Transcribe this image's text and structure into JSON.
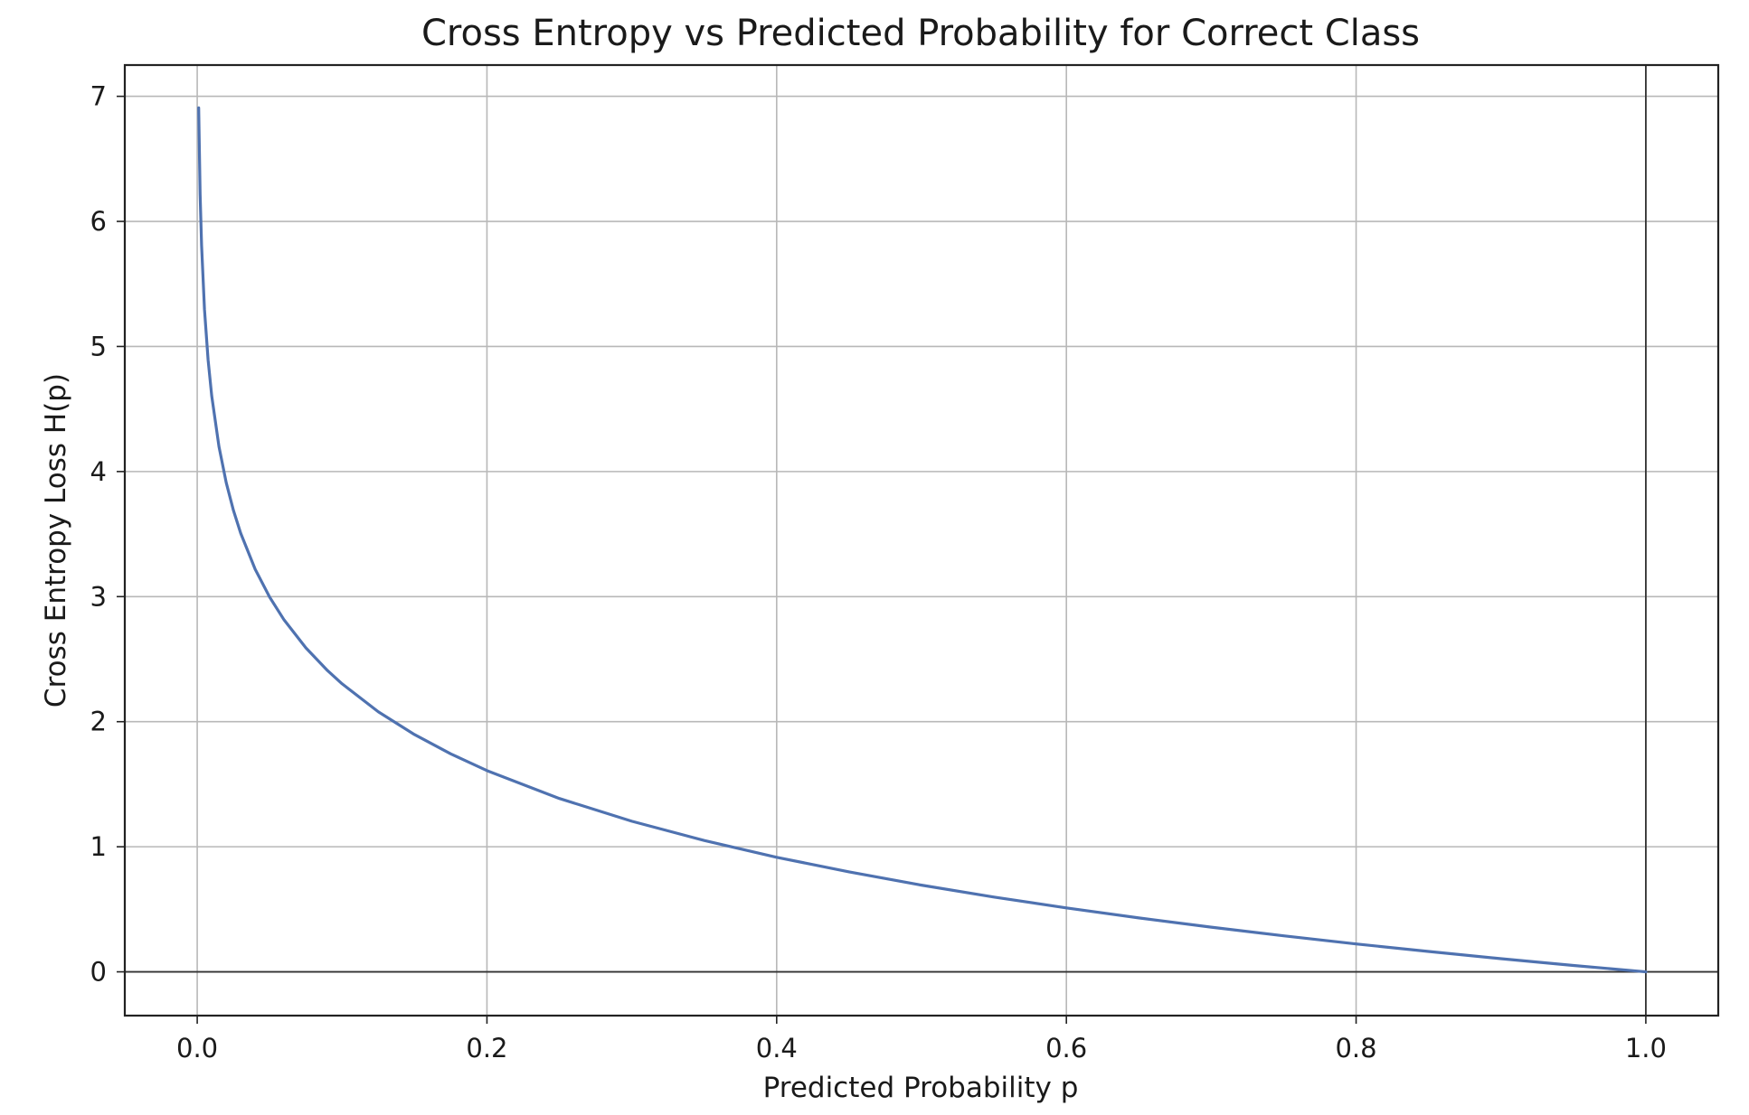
{
  "chart_data": {
    "type": "line",
    "title": "Cross Entropy vs Predicted Probability for Correct Class",
    "xlabel": "Predicted Probability p",
    "ylabel": "Cross Entropy Loss H(p)",
    "xlim": [
      -0.05,
      1.05
    ],
    "ylim": [
      -0.35,
      7.25
    ],
    "x_ticks": [
      0.0,
      0.2,
      0.4,
      0.6,
      0.8,
      1.0
    ],
    "x_tick_labels": [
      "0.0",
      "0.2",
      "0.4",
      "0.6",
      "0.8",
      "1.0"
    ],
    "y_ticks": [
      0,
      1,
      2,
      3,
      4,
      5,
      6,
      7
    ],
    "y_tick_labels": [
      "0",
      "1",
      "2",
      "3",
      "4",
      "5",
      "6",
      "7"
    ],
    "grid": true,
    "reference_lines": {
      "horizontal_y": 0,
      "vertical_x": 1.0
    },
    "series": [
      {
        "color": "#4f72b0",
        "x": [
          0.001,
          0.002,
          0.003,
          0.005,
          0.0075,
          0.01,
          0.015,
          0.02,
          0.025,
          0.03,
          0.04,
          0.05,
          0.06,
          0.075,
          0.09,
          0.1,
          0.125,
          0.15,
          0.175,
          0.2,
          0.25,
          0.3,
          0.35,
          0.4,
          0.45,
          0.5,
          0.55,
          0.6,
          0.65,
          0.7,
          0.75,
          0.8,
          0.85,
          0.9,
          0.95,
          1.0
        ],
        "y": [
          6.908,
          6.215,
          5.809,
          5.298,
          4.893,
          4.605,
          4.2,
          3.912,
          3.689,
          3.507,
          3.219,
          2.996,
          2.813,
          2.59,
          2.408,
          2.303,
          2.079,
          1.897,
          1.743,
          1.609,
          1.386,
          1.204,
          1.05,
          0.916,
          0.799,
          0.693,
          0.598,
          0.511,
          0.431,
          0.357,
          0.288,
          0.223,
          0.163,
          0.105,
          0.051,
          0.0
        ]
      }
    ]
  }
}
